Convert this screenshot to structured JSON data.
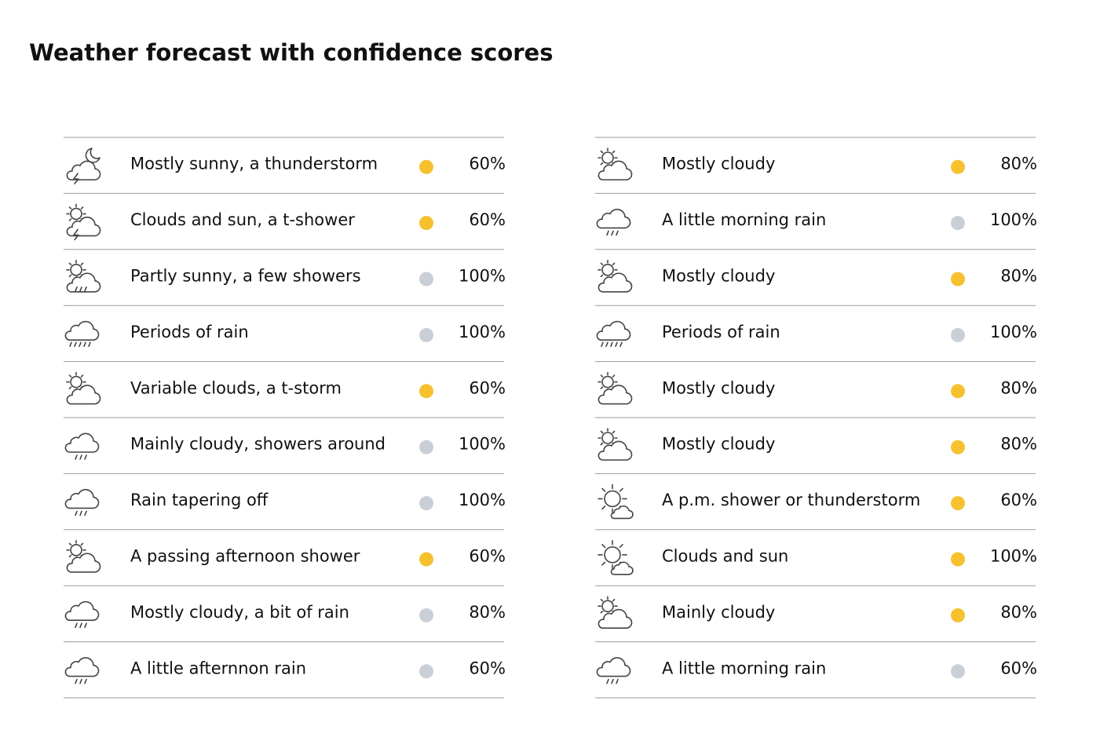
{
  "title": "Weather forecast with confidence scores",
  "columns": [
    {
      "rows": [
        {
          "forecast": "Mostly sunny, a  thunderstorm",
          "confidence": "60%",
          "color": "#f5c12e"
        },
        {
          "forecast": "Clouds and sun, a t-shower",
          "confidence": "60%",
          "color": "#f5c12e"
        },
        {
          "forecast": "Partly sunny, a few showers",
          "confidence": "100%",
          "color": "#c9cfd7"
        },
        {
          "forecast": "Periods of rain",
          "confidence": "100%",
          "color": "#c9cfd7"
        },
        {
          "forecast": "Variable clouds, a t-storm",
          "confidence": "60%",
          "color": "#f5c12e"
        },
        {
          "forecast": "Mainly cloudy, showers around",
          "confidence": "100%",
          "color": "#c9cfd7"
        },
        {
          "forecast": "Rain tapering off",
          "confidence": "100%",
          "color": "#c9cfd7"
        },
        {
          "forecast": "A passing afternoon shower",
          "confidence": "60%",
          "color": "#f5c12e"
        },
        {
          "forecast": "Mostly cloudy, a bit of rain",
          "confidence": "80%",
          "color": "#c9cfd7"
        },
        {
          "forecast": "A little afternnon rain",
          "confidence": "60%",
          "color": "#c9cfd7"
        }
      ]
    },
    {
      "rows": [
        {
          "forecast": "Mostly cloudy",
          "confidence": "80%",
          "color": "#f5c12e"
        },
        {
          "forecast": "A little morning rain",
          "confidence": "100%",
          "color": "#c9cfd7"
        },
        {
          "forecast": "Mostly cloudy",
          "confidence": "80%",
          "color": "#f5c12e"
        },
        {
          "forecast": "Periods of rain",
          "confidence": "100%",
          "color": "#c9cfd7"
        },
        {
          "forecast": "Mostly cloudy",
          "confidence": "80%",
          "color": "#f5c12e"
        },
        {
          "forecast": "Mostly cloudy",
          "confidence": "80%",
          "color": "#f5c12e"
        },
        {
          "forecast": "A p.m. shower or thunderstorm",
          "confidence": "60%",
          "color": "#f5c12e"
        },
        {
          "forecast": "Clouds and sun",
          "confidence": "100%",
          "color": "#f5c12e"
        },
        {
          "forecast": "Mainly cloudy",
          "confidence": "80%",
          "color": "#f5c12e"
        },
        {
          "forecast": "A little morning rain",
          "confidence": "60%",
          "color": "#c9cfd7"
        }
      ]
    }
  ]
}
